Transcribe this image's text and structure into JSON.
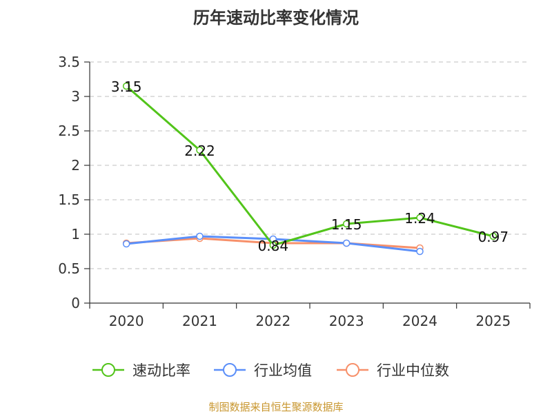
{
  "title": "历年速动比率变化情况",
  "source": "制图数据来自恒生聚源数据库",
  "chart_data": {
    "type": "line",
    "title": "历年速动比率变化情况",
    "categories": [
      "2020",
      "2021",
      "2022",
      "2023",
      "2024",
      "2025"
    ],
    "ylim": [
      0,
      3.5
    ],
    "yticks": [
      "0",
      "0.5",
      "1",
      "1.5",
      "2",
      "2.5",
      "3",
      "3.5"
    ],
    "grid": true,
    "legend": "bottom",
    "series": [
      {
        "name": "速动比率",
        "color": "#52c41a",
        "values": [
          3.15,
          2.22,
          0.84,
          1.15,
          1.24,
          0.97
        ],
        "labels": [
          "3.15",
          "2.22",
          "0.84",
          "1.15",
          "1.24",
          "0.97"
        ]
      },
      {
        "name": "行业均值",
        "color": "#5b8ff9",
        "values": [
          0.86,
          0.97,
          0.93,
          0.87,
          0.75,
          null
        ]
      },
      {
        "name": "行业中位数",
        "color": "#f7906a",
        "values": [
          0.87,
          0.94,
          0.87,
          0.87,
          0.8,
          null
        ]
      }
    ]
  }
}
